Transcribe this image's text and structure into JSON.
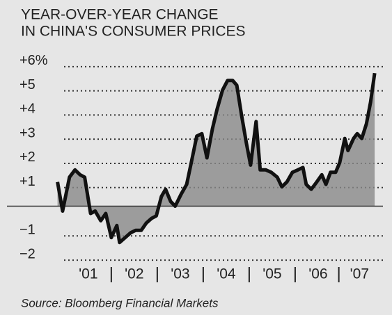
{
  "chart_data": {
    "type": "line",
    "title": [
      "YEAR-OVER-YEAR CHANGE",
      "IN CHINA'S CONSUMER PRICES"
    ],
    "source": "Source: Bloomberg Financial Markets",
    "x": [
      2000.83,
      2000.94,
      2001.09,
      2001.21,
      2001.32,
      2001.42,
      2001.55,
      2001.65,
      2001.77,
      2001.88,
      2002.0,
      2002.12,
      2002.18,
      2002.3,
      2002.42,
      2002.53,
      2002.65,
      2002.76,
      2002.88,
      2002.98,
      2003.09,
      2003.18,
      2003.29,
      2003.39,
      2003.52,
      2003.64,
      2003.74,
      2003.86,
      2003.97,
      2004.08,
      2004.2,
      2004.3,
      2004.42,
      2004.53,
      2004.64,
      2004.73,
      2004.83,
      2004.94,
      2005.03,
      2005.15,
      2005.24,
      2005.36,
      2005.48,
      2005.61,
      2005.71,
      2005.82,
      2005.94,
      2006.06,
      2006.17,
      2006.24,
      2006.35,
      2006.47,
      2006.58,
      2006.67,
      2006.77,
      2006.88,
      2006.97,
      2007.08,
      2007.15,
      2007.27,
      2007.35,
      2007.45,
      2007.55,
      2007.64,
      2007.73
    ],
    "series": [
      {
        "color": "#111111",
        "fill": "#8a8a8a",
        "values": [
          1.0,
          -0.2,
          1.2,
          1.5,
          1.3,
          1.2,
          -0.3,
          -0.2,
          -0.6,
          -0.3,
          -1.3,
          -0.8,
          -1.5,
          -1.3,
          -1.1,
          -1.0,
          -1.0,
          -0.7,
          -0.5,
          -0.4,
          0.4,
          0.7,
          0.2,
          0.0,
          0.5,
          0.9,
          1.8,
          2.9,
          3.0,
          2.0,
          3.2,
          4.0,
          4.8,
          5.2,
          5.2,
          5.0,
          3.8,
          2.6,
          1.7,
          3.5,
          1.5,
          1.5,
          1.4,
          1.2,
          0.8,
          1.0,
          1.4,
          1.5,
          1.6,
          0.9,
          0.7,
          1.0,
          1.3,
          0.9,
          1.4,
          1.4,
          1.8,
          2.8,
          2.3,
          2.8,
          3.0,
          2.8,
          3.4,
          4.3,
          5.5
        ]
      }
    ],
    "xlim": [
      1999.73,
      2007.91
    ],
    "xticks": [
      {
        "value": 2001.5,
        "label": "'01"
      },
      {
        "value": 2002.5,
        "label": "'02"
      },
      {
        "value": 2003.5,
        "label": "'03"
      },
      {
        "value": 2004.5,
        "label": "'04"
      },
      {
        "value": 2005.5,
        "label": "'05"
      },
      {
        "value": 2006.5,
        "label": "'06"
      },
      {
        "value": 2007.4,
        "label": "'07"
      }
    ],
    "ylim": [
      -2.4,
      6.8
    ],
    "yticks": [
      {
        "value": 6,
        "label": "+6%"
      },
      {
        "value": 5,
        "label": "+5"
      },
      {
        "value": 4,
        "label": "+4"
      },
      {
        "value": 3,
        "label": "+3"
      },
      {
        "value": 2,
        "label": "+2"
      },
      {
        "value": 1,
        "label": "+1"
      },
      {
        "value": -1,
        "label": "−1"
      },
      {
        "value": -2,
        "label": "−2"
      }
    ],
    "grid": true
  }
}
